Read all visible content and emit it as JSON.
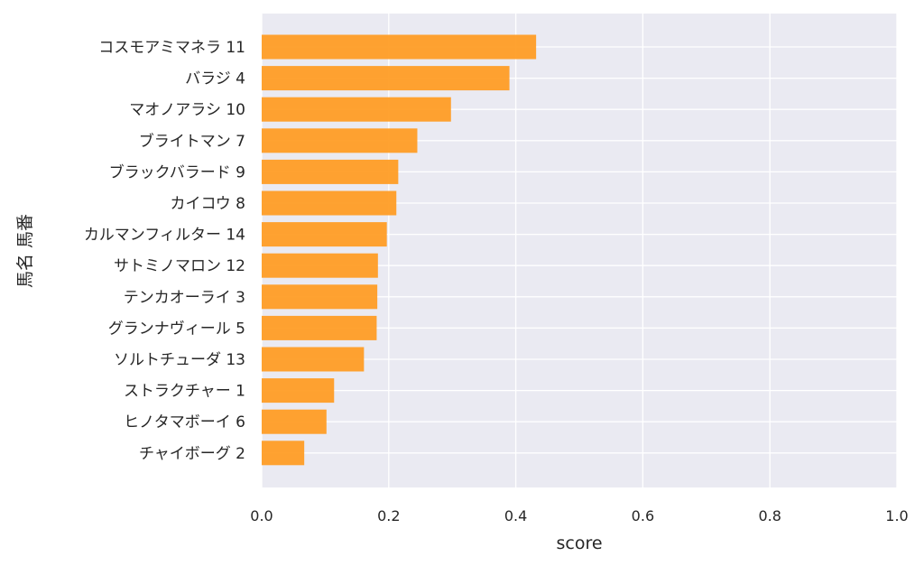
{
  "chart_data": {
    "type": "bar",
    "orientation": "horizontal",
    "xlabel": "score",
    "ylabel": "馬名 馬番",
    "xlim": [
      0,
      1.0
    ],
    "xticks": [
      "0.0",
      "0.2",
      "0.4",
      "0.6",
      "0.8",
      "1.0"
    ],
    "grid": true,
    "bar_color": "#ff9a1f",
    "background_color": "#eaeaf2",
    "categories": [
      "コスモアミマネラ 11",
      "バラジ 4",
      "マオノアラシ 10",
      "ブライトマン 7",
      "ブラックバラード 9",
      "カイコウ 8",
      "カルマンフィルター 14",
      "サトミノマロン 12",
      "テンカオーライ 3",
      "グランナヴィール 5",
      "ソルトチューダ 13",
      "ストラクチャー 1",
      "ヒノタマボーイ 6",
      "チャイボーグ 2"
    ],
    "values": [
      0.432,
      0.39,
      0.298,
      0.245,
      0.215,
      0.212,
      0.197,
      0.183,
      0.182,
      0.181,
      0.161,
      0.114,
      0.102,
      0.067
    ]
  }
}
